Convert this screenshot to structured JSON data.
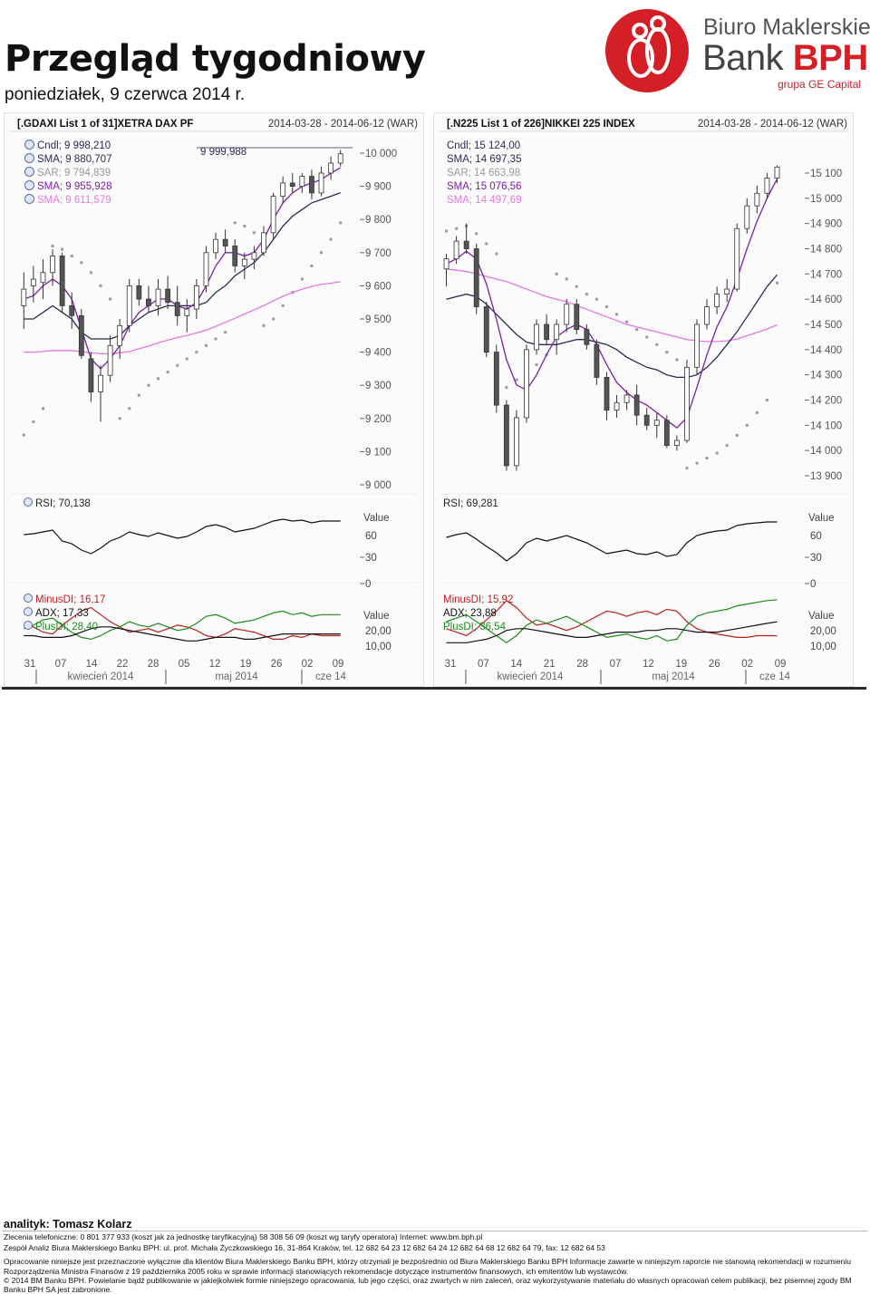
{
  "header": {
    "title": "Przegląd tygodniowy",
    "date": "poniedziałek, 9 czerwca 2014 r."
  },
  "logo": {
    "line1": "Biuro Maklerskie",
    "line2a": "Bank ",
    "line2b": "BPH",
    "line3": "grupa GE Capital",
    "colors": {
      "red": "#d51f26",
      "gray": "#555555"
    }
  },
  "chart_data": [
    {
      "type": "candlestick",
      "name": "[.GDAXI List 1 of 31]XETRA DAX PF",
      "range_label": "2014-03-28 - 2014-06-12 (WAR)",
      "price_axis_ticks": [
        "10 000",
        "9 900",
        "9 800",
        "9 700",
        "9 600",
        "9 500",
        "9 400",
        "9 300",
        "9 200",
        "9 100",
        "9 000"
      ],
      "ylim": [
        9000,
        10000
      ],
      "last_price_label": "9 999,988",
      "legend": [
        "Cndl; 9 998,210",
        "SMA; 9 880,707",
        "SAR; 9 794,839",
        "SMA; 9 955,928",
        "SMA; 9 611,579"
      ],
      "legend_colors": [
        "#2b2b55",
        "#2b2b55",
        "#9a9a9a",
        "#7d1fa6",
        "#e478e0"
      ],
      "candles": [
        {
          "o": 9540,
          "h": 9640,
          "l": 9470,
          "c": 9590
        },
        {
          "o": 9600,
          "h": 9660,
          "l": 9550,
          "c": 9620
        },
        {
          "o": 9610,
          "h": 9680,
          "l": 9560,
          "c": 9640
        },
        {
          "o": 9640,
          "h": 9710,
          "l": 9600,
          "c": 9690
        },
        {
          "o": 9690,
          "h": 9700,
          "l": 9520,
          "c": 9540
        },
        {
          "o": 9540,
          "h": 9580,
          "l": 9470,
          "c": 9510
        },
        {
          "o": 9510,
          "h": 9530,
          "l": 9380,
          "c": 9390
        },
        {
          "o": 9380,
          "h": 9400,
          "l": 9250,
          "c": 9280
        },
        {
          "o": 9280,
          "h": 9360,
          "l": 9190,
          "c": 9330
        },
        {
          "o": 9330,
          "h": 9450,
          "l": 9310,
          "c": 9420
        },
        {
          "o": 9420,
          "h": 9500,
          "l": 9380,
          "c": 9480
        },
        {
          "o": 9480,
          "h": 9620,
          "l": 9460,
          "c": 9600
        },
        {
          "o": 9600,
          "h": 9620,
          "l": 9540,
          "c": 9560
        },
        {
          "o": 9560,
          "h": 9600,
          "l": 9520,
          "c": 9540
        },
        {
          "o": 9540,
          "h": 9620,
          "l": 9510,
          "c": 9590
        },
        {
          "o": 9590,
          "h": 9630,
          "l": 9530,
          "c": 9550
        },
        {
          "o": 9550,
          "h": 9600,
          "l": 9480,
          "c": 9510
        },
        {
          "o": 9510,
          "h": 9560,
          "l": 9460,
          "c": 9530
        },
        {
          "o": 9530,
          "h": 9620,
          "l": 9500,
          "c": 9600
        },
        {
          "o": 9600,
          "h": 9720,
          "l": 9580,
          "c": 9700
        },
        {
          "o": 9700,
          "h": 9760,
          "l": 9680,
          "c": 9740
        },
        {
          "o": 9740,
          "h": 9770,
          "l": 9700,
          "c": 9720
        },
        {
          "o": 9720,
          "h": 9740,
          "l": 9640,
          "c": 9660
        },
        {
          "o": 9660,
          "h": 9700,
          "l": 9620,
          "c": 9680
        },
        {
          "o": 9680,
          "h": 9720,
          "l": 9650,
          "c": 9700
        },
        {
          "o": 9700,
          "h": 9780,
          "l": 9690,
          "c": 9760
        },
        {
          "o": 9760,
          "h": 9880,
          "l": 9740,
          "c": 9870
        },
        {
          "o": 9870,
          "h": 9930,
          "l": 9850,
          "c": 9910
        },
        {
          "o": 9910,
          "h": 9940,
          "l": 9880,
          "c": 9900
        },
        {
          "o": 9900,
          "h": 9940,
          "l": 9880,
          "c": 9930
        },
        {
          "o": 9930,
          "h": 9950,
          "l": 9860,
          "c": 9880
        },
        {
          "o": 9880,
          "h": 9960,
          "l": 9870,
          "c": 9940
        },
        {
          "o": 9940,
          "h": 9990,
          "l": 9920,
          "c": 9970
        },
        {
          "o": 9970,
          "h": 10010,
          "l": 9960,
          "c": 9998
        }
      ],
      "sma_fast": [
        9560,
        9570,
        9600,
        9620,
        9600,
        9560,
        9470,
        9380,
        9350,
        9380,
        9420,
        9480,
        9520,
        9540,
        9560,
        9560,
        9540,
        9530,
        9550,
        9600,
        9660,
        9700,
        9700,
        9690,
        9700,
        9740,
        9800,
        9850,
        9880,
        9900,
        9910,
        9920,
        9940,
        9956
      ],
      "sma_mid": [
        9500,
        9500,
        9520,
        9540,
        9520,
        9500,
        9460,
        9440,
        9440,
        9440,
        9450,
        9480,
        9500,
        9520,
        9530,
        9540,
        9540,
        9540,
        9540,
        9550,
        9580,
        9600,
        9630,
        9650,
        9670,
        9700,
        9740,
        9780,
        9810,
        9830,
        9850,
        9860,
        9870,
        9881
      ],
      "sma_slow": [
        9400,
        9400,
        9402,
        9405,
        9405,
        9405,
        9402,
        9398,
        9395,
        9395,
        9398,
        9402,
        9410,
        9418,
        9428,
        9436,
        9444,
        9450,
        9458,
        9466,
        9478,
        9490,
        9502,
        9515,
        9528,
        9540,
        9555,
        9568,
        9580,
        9590,
        9598,
        9604,
        9608,
        9612
      ],
      "sar": [
        9150,
        9190,
        9230,
        9720,
        9710,
        9690,
        9670,
        9640,
        9600,
        9560,
        9200,
        9230,
        9270,
        9300,
        9320,
        9340,
        9360,
        9380,
        9400,
        9420,
        9440,
        9460,
        9790,
        9780,
        9760,
        9480,
        9500,
        9540,
        9580,
        9620,
        9660,
        9700,
        9740,
        9790
      ],
      "rsi_label": "RSI; 70,138",
      "rsi_axis": [
        "Value",
        "60",
        "30"
      ],
      "rsi": [
        55,
        56,
        58,
        60,
        48,
        45,
        38,
        34,
        40,
        48,
        52,
        58,
        55,
        53,
        57,
        54,
        51,
        53,
        58,
        64,
        66,
        63,
        58,
        60,
        62,
        66,
        70,
        72,
        70,
        71,
        68,
        70,
        70,
        70
      ],
      "dmi_legend": [
        "MinusDI; 16,17",
        "ADX; 17,33",
        "PlusDI; 28,40"
      ],
      "dmi_axis": [
        "0",
        "Value",
        "20,00",
        "10,00"
      ],
      "plus_di": [
        20,
        22,
        25,
        26,
        22,
        18,
        15,
        14,
        16,
        19,
        21,
        24,
        22,
        21,
        23,
        21,
        19,
        20,
        23,
        27,
        28,
        26,
        23,
        24,
        25,
        27,
        29,
        30,
        28,
        29,
        27,
        28,
        28,
        28
      ],
      "minus_di": [
        22,
        21,
        18,
        17,
        22,
        26,
        30,
        32,
        28,
        24,
        21,
        18,
        19,
        20,
        18,
        20,
        22,
        21,
        19,
        16,
        15,
        17,
        20,
        19,
        18,
        16,
        14,
        14,
        16,
        15,
        17,
        16,
        16,
        16
      ],
      "adx": [
        16,
        16,
        15,
        15,
        15,
        16,
        18,
        20,
        21,
        21,
        20,
        19,
        18,
        17,
        16,
        15,
        14,
        13,
        13,
        14,
        15,
        15,
        15,
        14,
        14,
        15,
        16,
        17,
        17,
        17,
        17,
        17,
        17,
        17
      ],
      "x_ticks": [
        "31",
        "07",
        "14",
        "22",
        "28",
        "05",
        "12",
        "19",
        "26",
        "02",
        "09"
      ],
      "month_labels": [
        "kwiecień 2014",
        "maj 2014",
        "cze 14"
      ]
    },
    {
      "type": "candlestick",
      "name": "[.N225 List 1 of 226]NIKKEI 225 INDEX",
      "range_label": "2014-03-28 - 2014-06-12 (WAR)",
      "price_axis_ticks": [
        "15 100",
        "15 000",
        "14 900",
        "14 800",
        "14 700",
        "14 600",
        "14 500",
        "14 400",
        "14 300",
        "14 200",
        "14 100",
        "14 000",
        "13 900"
      ],
      "ylim": [
        13900,
        15100
      ],
      "legend": [
        "Cndl; 15 124,00",
        "SMA; 14 697,35",
        "SAR; 14 663,98",
        "SMA; 15 076,56",
        "SMA; 14 497,69"
      ],
      "legend_colors": [
        "#2b2b55",
        "#2b2b55",
        "#9a9a9a",
        "#7d1fa6",
        "#e478e0"
      ],
      "candles": [
        {
          "o": 14720,
          "h": 14780,
          "l": 14650,
          "c": 14760
        },
        {
          "o": 14760,
          "h": 14850,
          "l": 14740,
          "c": 14830
        },
        {
          "o": 14830,
          "h": 14900,
          "l": 14780,
          "c": 14800
        },
        {
          "o": 14800,
          "h": 14820,
          "l": 14540,
          "c": 14570
        },
        {
          "o": 14570,
          "h": 14590,
          "l": 14370,
          "c": 14390
        },
        {
          "o": 14390,
          "h": 14420,
          "l": 14150,
          "c": 14180
        },
        {
          "o": 14180,
          "h": 14200,
          "l": 13920,
          "c": 13940
        },
        {
          "o": 13940,
          "h": 14160,
          "l": 13920,
          "c": 14130
        },
        {
          "o": 14130,
          "h": 14420,
          "l": 14110,
          "c": 14400
        },
        {
          "o": 14400,
          "h": 14520,
          "l": 14380,
          "c": 14500
        },
        {
          "o": 14500,
          "h": 14540,
          "l": 14420,
          "c": 14440
        },
        {
          "o": 14440,
          "h": 14520,
          "l": 14380,
          "c": 14500
        },
        {
          "o": 14500,
          "h": 14600,
          "l": 14470,
          "c": 14580
        },
        {
          "o": 14580,
          "h": 14600,
          "l": 14460,
          "c": 14480
        },
        {
          "o": 14480,
          "h": 14500,
          "l": 14400,
          "c": 14420
        },
        {
          "o": 14420,
          "h": 14440,
          "l": 14260,
          "c": 14290
        },
        {
          "o": 14290,
          "h": 14310,
          "l": 14120,
          "c": 14160
        },
        {
          "o": 14160,
          "h": 14220,
          "l": 14130,
          "c": 14190
        },
        {
          "o": 14190,
          "h": 14240,
          "l": 14160,
          "c": 14220
        },
        {
          "o": 14220,
          "h": 14260,
          "l": 14100,
          "c": 14140
        },
        {
          "o": 14140,
          "h": 14170,
          "l": 14080,
          "c": 14100
        },
        {
          "o": 14100,
          "h": 14150,
          "l": 14050,
          "c": 14120
        },
        {
          "o": 14120,
          "h": 14140,
          "l": 14010,
          "c": 14020
        },
        {
          "o": 14020,
          "h": 14060,
          "l": 14000,
          "c": 14040
        },
        {
          "o": 14040,
          "h": 14360,
          "l": 14030,
          "c": 14330
        },
        {
          "o": 14330,
          "h": 14520,
          "l": 14300,
          "c": 14500
        },
        {
          "o": 14500,
          "h": 14600,
          "l": 14480,
          "c": 14570
        },
        {
          "o": 14570,
          "h": 14650,
          "l": 14540,
          "c": 14620
        },
        {
          "o": 14620,
          "h": 14680,
          "l": 14590,
          "c": 14640
        },
        {
          "o": 14640,
          "h": 14900,
          "l": 14630,
          "c": 14880
        },
        {
          "o": 14880,
          "h": 15000,
          "l": 14860,
          "c": 14970
        },
        {
          "o": 14970,
          "h": 15050,
          "l": 14940,
          "c": 15020
        },
        {
          "o": 15020,
          "h": 15100,
          "l": 15000,
          "c": 15080
        },
        {
          "o": 15080,
          "h": 15130,
          "l": 15060,
          "c": 15124
        }
      ],
      "sma_fast": [
        14740,
        14760,
        14790,
        14760,
        14660,
        14520,
        14360,
        14260,
        14240,
        14300,
        14380,
        14450,
        14480,
        14500,
        14480,
        14420,
        14340,
        14270,
        14230,
        14200,
        14180,
        14150,
        14120,
        14090,
        14130,
        14250,
        14380,
        14490,
        14570,
        14680,
        14800,
        14910,
        15000,
        15077
      ],
      "sma_mid": [
        14600,
        14610,
        14620,
        14610,
        14580,
        14540,
        14500,
        14460,
        14430,
        14420,
        14420,
        14420,
        14430,
        14440,
        14440,
        14430,
        14420,
        14400,
        14370,
        14350,
        14330,
        14320,
        14300,
        14290,
        14290,
        14300,
        14330,
        14370,
        14420,
        14470,
        14530,
        14590,
        14650,
        14697
      ],
      "sma_slow": [
        14720,
        14715,
        14710,
        14700,
        14690,
        14680,
        14670,
        14655,
        14640,
        14625,
        14610,
        14600,
        14590,
        14575,
        14560,
        14545,
        14530,
        14515,
        14500,
        14490,
        14480,
        14470,
        14460,
        14450,
        14440,
        14435,
        14432,
        14432,
        14435,
        14442,
        14455,
        14468,
        14482,
        14498
      ],
      "sar": [
        14870,
        14880,
        14890,
        14860,
        14820,
        14780,
        14250,
        14280,
        14310,
        14340,
        14380,
        14700,
        14680,
        14650,
        14620,
        14600,
        14570,
        14540,
        14510,
        14480,
        14450,
        14420,
        14390,
        14360,
        13930,
        13950,
        13970,
        13990,
        14020,
        14060,
        14100,
        14150,
        14200,
        14664
      ],
      "rsi_label": "RSI; 69,281",
      "rsi_axis": [
        "Value",
        "60",
        "30"
      ],
      "rsi": [
        52,
        55,
        57,
        50,
        42,
        35,
        26,
        34,
        46,
        51,
        48,
        51,
        54,
        50,
        46,
        40,
        34,
        36,
        38,
        34,
        33,
        36,
        31,
        33,
        46,
        54,
        57,
        59,
        60,
        65,
        67,
        68,
        69,
        69
      ],
      "dmi_legend": [
        "MinusDI; 15,92",
        "ADX; 23,88",
        "PlusDI; 36,54"
      ],
      "dmi_axis": [
        "0",
        "Value",
        "20,00",
        "10,00"
      ],
      "plus_di": [
        24,
        26,
        28,
        24,
        20,
        16,
        12,
        16,
        22,
        25,
        23,
        25,
        27,
        24,
        21,
        18,
        15,
        16,
        17,
        15,
        14,
        16,
        13,
        14,
        22,
        27,
        29,
        30,
        31,
        33,
        34,
        35,
        36,
        36.5
      ],
      "minus_di": [
        20,
        18,
        16,
        20,
        25,
        30,
        36,
        32,
        26,
        22,
        23,
        21,
        19,
        21,
        24,
        27,
        30,
        29,
        27,
        29,
        30,
        28,
        31,
        30,
        24,
        20,
        18,
        17,
        16,
        15,
        15,
        16,
        16,
        15.9
      ],
      "adx": [
        12,
        12,
        12,
        13,
        14,
        16,
        19,
        20,
        20,
        19,
        18,
        17,
        16,
        15,
        15,
        16,
        17,
        18,
        18,
        18,
        19,
        19,
        20,
        20,
        19,
        18,
        18,
        18,
        19,
        20,
        21,
        22,
        23,
        23.9
      ],
      "x_ticks": [
        "31",
        "07",
        "14",
        "21",
        "28",
        "07",
        "12",
        "19",
        "26",
        "02",
        "09"
      ],
      "month_labels": [
        "kwiecień 2014",
        "maj 2014",
        "cze 14"
      ]
    }
  ],
  "footer": {
    "analyst": "analityk: Tomasz Kolarz",
    "line1": "Zlecenia telefoniczne: 0  801  377  933 (koszt jak za jednostkę taryfikacyjną)   58 308 56 09 (koszt wg taryfy operatora)   Internet: www.bm.bph.pl",
    "line2": "Zespół Analiz Biura Maklerskiego Banku BPH: ul. prof. Michała Życzkowskiego 16, 31-864 Kraków,  tel. 12 682 64 23   12 682 64 24   12  682 64 68   12 682 64 79,   fax: 12  682 64 53",
    "line3": "Opracowanie niniejsze jest przeznaczone wyłącznie dla klientów Biura Maklerskiego Banku BPH, którzy otrzymali je bezpośrednio od Biura Maklerskiego Banku BPH Informacje zawarte w niniejszym raporcie nie stanowią rekomendacji w rozumieniu",
    "line4": "Rozporządzenia Ministra Finansów z 19 października 2005 roku w sprawie informacji stanowiących rekomendacje dotyczące instrumentów finansowych, ich emitentów lub wystawców.",
    "line5": "© 2014 BM Banku BPH. Powielanie bądź publikowanie w jakiejkolwiek formie niniejszego opracowania, lub jego części, oraz zwartych w nim zaleceń, oraz wykorzystywanie materiału do własnych opracowań celem publikacji, bez pisemnej zgody BM",
    "line6": "Banku BPH SA jest zabronione."
  }
}
